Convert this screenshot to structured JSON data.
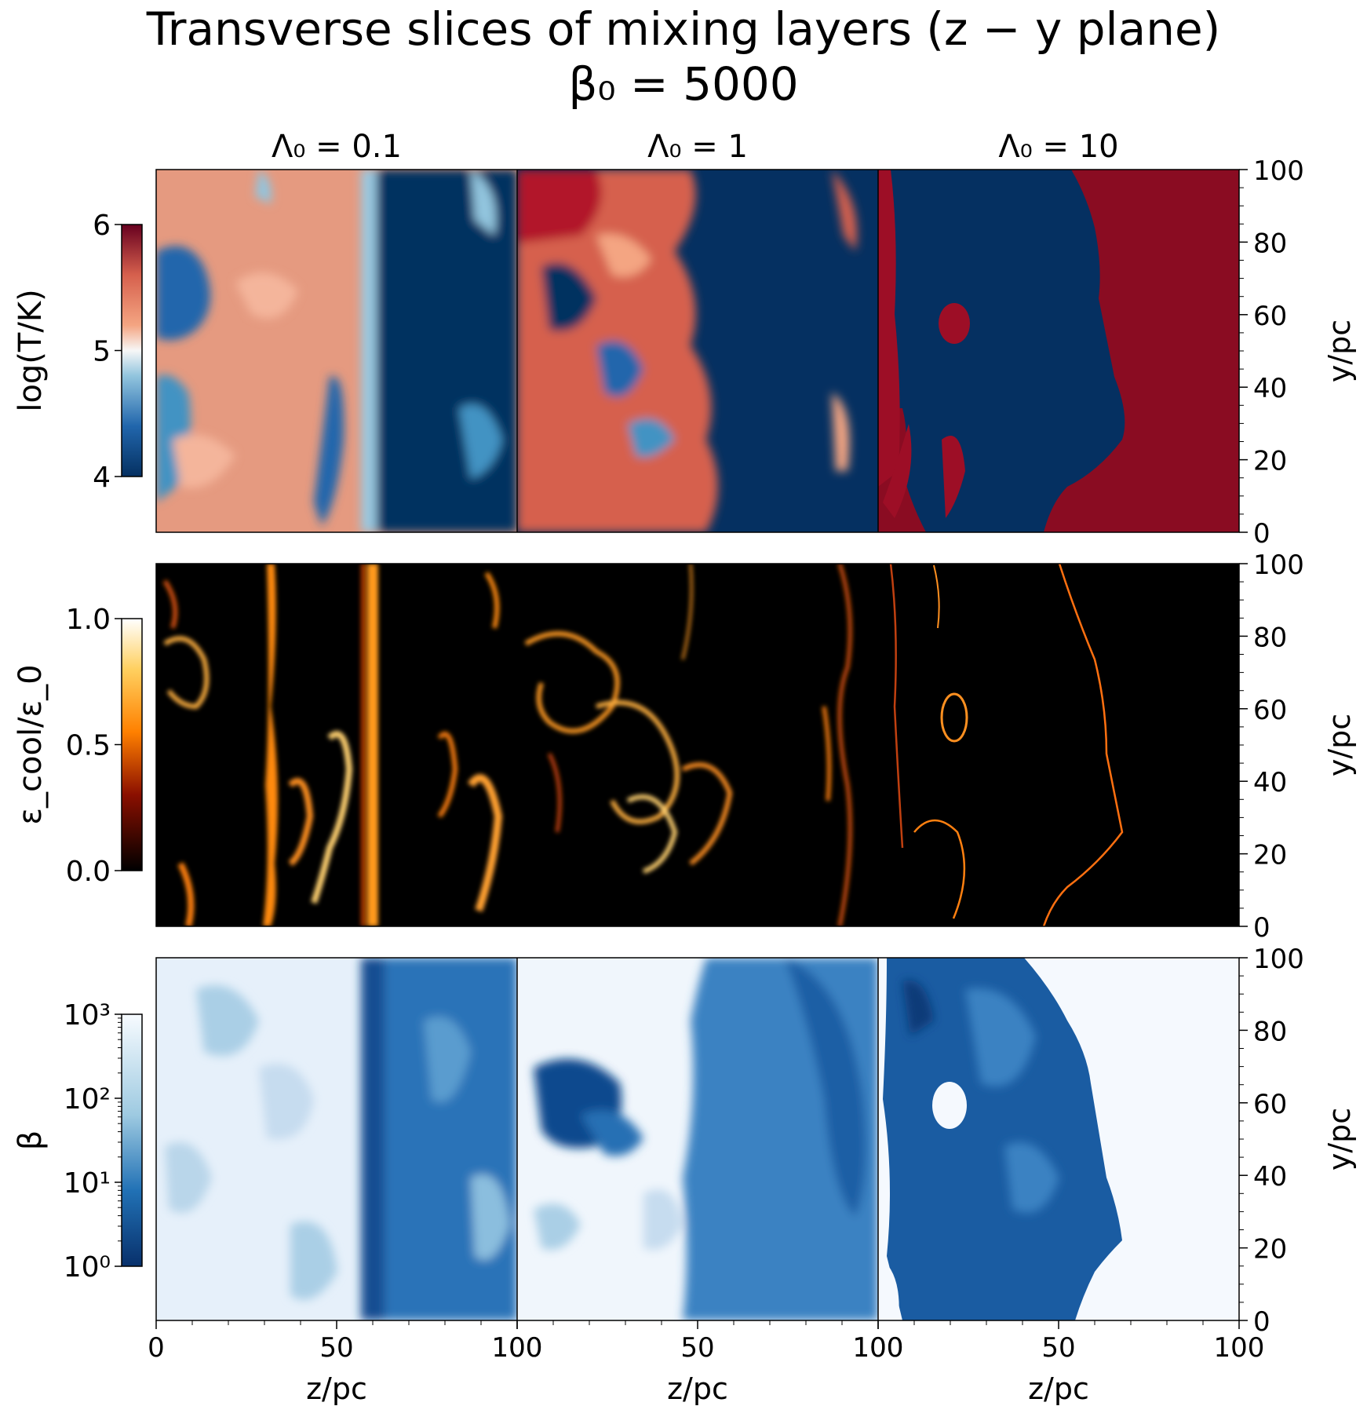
{
  "title": "Transverse slices of mixing layers (z − y plane)",
  "subtitle": "β₀ = 5000",
  "chart_data": {
    "type": "heatmap",
    "title": "Transverse slices of mixing layers (z − y plane)",
    "subtitle": "β₀ = 5000",
    "columns": [
      "Λ₀ = 0.1",
      "Λ₀ = 1",
      "Λ₀ = 10"
    ],
    "rows": [
      {
        "quantity": "log(T/K)",
        "colormap": "RdBu_r",
        "colorbar_ticks": [
          "4",
          "5",
          "6"
        ],
        "colorbar_range": [
          4,
          6
        ],
        "colors": {
          "low": "#053061",
          "mid": "#f7f7f7",
          "high": "#67001f"
        }
      },
      {
        "quantity": "ε_cool/ε_0",
        "colormap": "afmhot",
        "colorbar_ticks": [
          "0.0",
          "0.5",
          "1.0"
        ],
        "colorbar_range": [
          0.0,
          1.0
        ],
        "colors": {
          "low": "#000000",
          "mid": "#ff8000",
          "high": "#ffffff"
        }
      },
      {
        "quantity": "β",
        "colormap": "Blues_r",
        "scale": "log",
        "colorbar_ticks": [
          "10⁰",
          "10¹",
          "10²",
          "10³"
        ],
        "colorbar_range": [
          1,
          1000
        ],
        "colors": {
          "low": "#08306b",
          "high": "#f7fbff"
        }
      }
    ],
    "xlabel": "z/pc",
    "ylabel": "y/pc",
    "xlim": [
      0,
      100
    ],
    "ylim": [
      0,
      100
    ],
    "xticks": [
      "0",
      "50",
      "100"
    ],
    "yticks": [
      "0",
      "20",
      "40",
      "60",
      "80",
      "100"
    ],
    "panel_xtick_labels": [
      [
        "0",
        "50",
        "100"
      ],
      [
        "100",
        "50",
        "100"
      ],
      [
        "100",
        "50",
        "100"
      ]
    ]
  }
}
